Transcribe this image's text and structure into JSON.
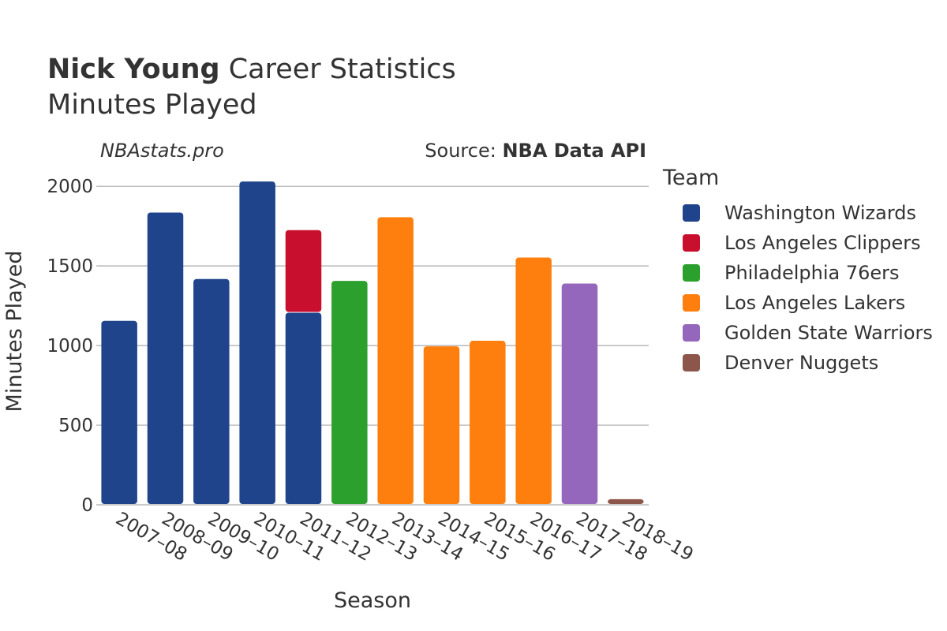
{
  "header": {
    "title_bold": "Nick Young",
    "title_rest": " Career Statistics",
    "subtitle": "Minutes Played",
    "site": "NBAstats.pro",
    "source_label": "Source: ",
    "source_value": "NBA Data API"
  },
  "legend": {
    "title": "Team",
    "items": [
      {
        "name": "Washington Wizards",
        "color": "#1f448c"
      },
      {
        "name": "Los Angeles Clippers",
        "color": "#c8102e"
      },
      {
        "name": "Philadelphia 76ers",
        "color": "#2ca02c"
      },
      {
        "name": "Los Angeles Lakers",
        "color": "#ff7f0e"
      },
      {
        "name": "Golden State Warriors",
        "color": "#9467bd"
      },
      {
        "name": "Denver Nuggets",
        "color": "#8c564b"
      }
    ]
  },
  "chart_data": {
    "type": "bar",
    "stacked": true,
    "title": "Nick Young Career Statistics",
    "subtitle": "Minutes Played",
    "xlabel": "Season",
    "ylabel": "Minutes Played",
    "ylim": [
      0,
      2100
    ],
    "yticks": [
      0,
      500,
      1000,
      1500,
      2000
    ],
    "grid": true,
    "legend_position": "right",
    "categories": [
      "2007–08",
      "2008–09",
      "2009–10",
      "2010–11",
      "2011–12",
      "2012–13",
      "2013–14",
      "2014–15",
      "2015–16",
      "2016–17",
      "2017–18",
      "2018–19"
    ],
    "series": [
      {
        "name": "Washington Wizards",
        "color": "#1f448c",
        "values": [
          1155,
          1835,
          1418,
          2030,
          1206,
          0,
          0,
          0,
          0,
          0,
          0,
          0
        ]
      },
      {
        "name": "Los Angeles Clippers",
        "color": "#c8102e",
        "values": [
          0,
          0,
          0,
          0,
          519,
          0,
          0,
          0,
          0,
          0,
          0,
          0
        ]
      },
      {
        "name": "Philadelphia 76ers",
        "color": "#2ca02c",
        "values": [
          0,
          0,
          0,
          0,
          0,
          1406,
          0,
          0,
          0,
          0,
          0,
          0
        ]
      },
      {
        "name": "Los Angeles Lakers",
        "color": "#ff7f0e",
        "values": [
          0,
          0,
          0,
          0,
          0,
          0,
          1806,
          995,
          1030,
          1553,
          0,
          0
        ]
      },
      {
        "name": "Golden State Warriors",
        "color": "#9467bd",
        "values": [
          0,
          0,
          0,
          0,
          0,
          0,
          0,
          0,
          0,
          0,
          1389,
          0
        ]
      },
      {
        "name": "Denver Nuggets",
        "color": "#8c564b",
        "values": [
          0,
          0,
          0,
          0,
          0,
          0,
          0,
          0,
          0,
          0,
          0,
          35
        ]
      }
    ]
  }
}
